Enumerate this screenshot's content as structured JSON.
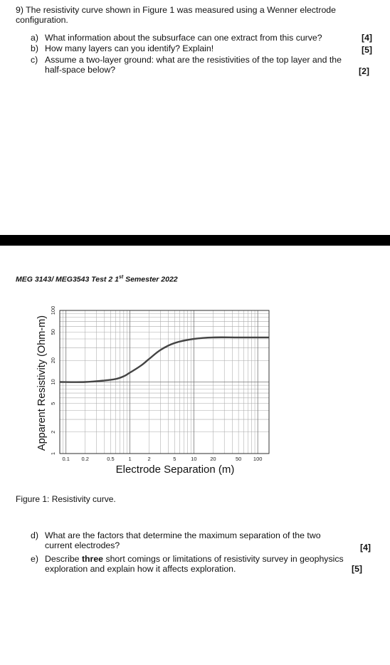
{
  "question": {
    "intro_line1": "9) The resistivity curve shown in Figure 1 was measured using a Wenner electrode",
    "intro_line2": "configuration.",
    "items": [
      {
        "label": "a)",
        "line1": "What information about the subsurface can one extract from this curve?",
        "line2": "",
        "marks": "[4]"
      },
      {
        "label": "b)",
        "line1": "How many layers can you identify? Explain!",
        "line2": "",
        "marks": "[5]"
      },
      {
        "label": "c)",
        "line1": "Assume a two-layer ground: what are the resistivities of the top layer and the",
        "line2": "half-space below?",
        "marks": "[2]"
      }
    ]
  },
  "test_header": {
    "main": "MEG 3143/ MEG3543 Test 2 1",
    "superscript": "st",
    "rest": " Semester 2022"
  },
  "figure": {
    "caption": "Figure 1: Resistivity curve."
  },
  "chart_data": {
    "type": "line",
    "title": "",
    "xlabel": "Electrode Separation (m)",
    "ylabel": "Apparent Resistivity (Ohm-m)",
    "x_scale": "log",
    "y_scale": "log",
    "xlim": [
      0.08,
      150
    ],
    "ylim": [
      1,
      100
    ],
    "x_ticks": [
      0.1,
      0.2,
      0.5,
      1,
      2,
      5,
      10,
      20,
      50,
      100
    ],
    "x_tick_labels": [
      "0.1",
      "0.2",
      "0.5",
      "1",
      "2",
      "5",
      "10",
      "20",
      "50",
      "100"
    ],
    "y_ticks": [
      1,
      2,
      5,
      10,
      20,
      50,
      100
    ],
    "y_tick_labels": [
      "1",
      "2",
      "5",
      "10",
      "20",
      "50",
      "100"
    ],
    "grid": true,
    "legend": "none",
    "series": [
      {
        "color": "#444444",
        "x": [
          0.08,
          0.2,
          0.4,
          0.6,
          0.8,
          1,
          1.5,
          2,
          3,
          5,
          10,
          20,
          50,
          150
        ],
        "y": [
          10,
          10,
          10.5,
          11,
          12,
          13.5,
          17,
          21,
          28,
          35,
          40,
          42,
          42,
          42
        ]
      }
    ]
  },
  "question2": {
    "items": [
      {
        "label": "d)",
        "line1": "What are the factors that determine the maximum separation of the two",
        "line2": "current electrodes?",
        "marks": "[4]"
      },
      {
        "label": "e)",
        "line1_pre": "Describe ",
        "line1_bold": "three",
        "line1_post": " short comings or limitations of resistivity survey in geophysics",
        "line2": "exploration and explain how it affects exploration.",
        "marks": "[5]"
      }
    ]
  }
}
